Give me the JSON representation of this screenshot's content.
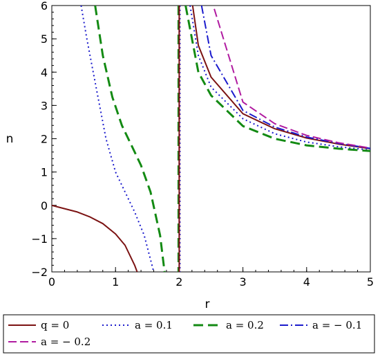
{
  "chart_data": {
    "type": "line",
    "title": "",
    "xlabel": "r",
    "ylabel": "n",
    "xlim": [
      0,
      5
    ],
    "ylim": [
      -2,
      6
    ],
    "xticks": [
      "0",
      "1",
      "2",
      "3",
      "4",
      "5"
    ],
    "yticks": [
      "−2",
      "−1",
      "0",
      "1",
      "2",
      "3",
      "4",
      "5",
      "6"
    ],
    "asymptote_x": 2,
    "grid": false,
    "legend_position": "bottom",
    "series": [
      {
        "name": "q = 0",
        "color": "#7b1212",
        "dash": "solid",
        "width": 2,
        "segments": [
          [
            [
              0,
              0
            ],
            [
              0.2,
              -0.1
            ],
            [
              0.4,
              -0.2
            ],
            [
              0.6,
              -0.35
            ],
            [
              0.8,
              -0.55
            ],
            [
              1.0,
              -0.86
            ],
            [
              1.15,
              -1.2
            ],
            [
              1.3,
              -1.8
            ],
            [
              1.34,
              -2.0
            ]
          ],
          [
            [
              2.21,
              6.0
            ],
            [
              2.3,
              4.8
            ],
            [
              2.5,
              3.85
            ],
            [
              3.0,
              2.75
            ],
            [
              3.5,
              2.3
            ],
            [
              4.0,
              2.02
            ],
            [
              4.5,
              1.84
            ],
            [
              5.0,
              1.7
            ]
          ]
        ]
      },
      {
        "name": "a = 0.1",
        "color": "#1a1acc",
        "dash": "2,4",
        "width": 2,
        "segments": [
          [
            [
              0.46,
              6.0
            ],
            [
              0.55,
              5.0
            ],
            [
              0.7,
              3.5
            ],
            [
              0.85,
              2.0
            ],
            [
              1.0,
              1.0
            ],
            [
              1.15,
              0.4
            ],
            [
              1.3,
              -0.2
            ],
            [
              1.45,
              -0.9
            ],
            [
              1.6,
              -2.0
            ]
          ],
          [
            [
              2.17,
              6.0
            ],
            [
              2.3,
              4.5
            ],
            [
              2.5,
              3.55
            ],
            [
              3.0,
              2.6
            ],
            [
              3.5,
              2.15
            ],
            [
              4.0,
              1.9
            ],
            [
              4.5,
              1.76
            ],
            [
              5.0,
              1.66
            ]
          ]
        ]
      },
      {
        "name": "a = 0.2",
        "color": "#138a13",
        "dash": "14,7",
        "width": 3,
        "segments": [
          [
            [
              0.68,
              6.0
            ],
            [
              0.8,
              4.5
            ],
            [
              0.95,
              3.25
            ],
            [
              1.1,
              2.4
            ],
            [
              1.25,
              1.8
            ],
            [
              1.4,
              1.2
            ],
            [
              1.55,
              0.4
            ],
            [
              1.7,
              -0.9
            ],
            [
              1.77,
              -2.0
            ]
          ],
          [
            [
              2.1,
              6.0
            ],
            [
              2.3,
              4.0
            ],
            [
              2.5,
              3.3
            ],
            [
              3.0,
              2.38
            ],
            [
              3.5,
              2.0
            ],
            [
              4.0,
              1.8
            ],
            [
              4.5,
              1.7
            ],
            [
              5.0,
              1.63
            ]
          ]
        ]
      },
      {
        "name": "a = − 0.1",
        "color": "#1a1acc",
        "dash": "12,4,2,4",
        "width": 2,
        "segments": [
          [
            [
              2.35,
              6.0
            ],
            [
              2.5,
              4.5
            ],
            [
              3.0,
              2.85
            ],
            [
              3.5,
              2.35
            ],
            [
              4.0,
              2.05
            ],
            [
              4.5,
              1.86
            ],
            [
              5.0,
              1.71
            ]
          ]
        ]
      },
      {
        "name": "a = − 0.2",
        "color": "#b01aa0",
        "dash": "12,5",
        "width": 2,
        "segments": [
          [
            [
              2.55,
              5.9
            ],
            [
              3.0,
              3.1
            ],
            [
              3.5,
              2.45
            ],
            [
              4.0,
              2.1
            ],
            [
              4.5,
              1.88
            ],
            [
              5.0,
              1.72
            ]
          ]
        ]
      }
    ]
  }
}
